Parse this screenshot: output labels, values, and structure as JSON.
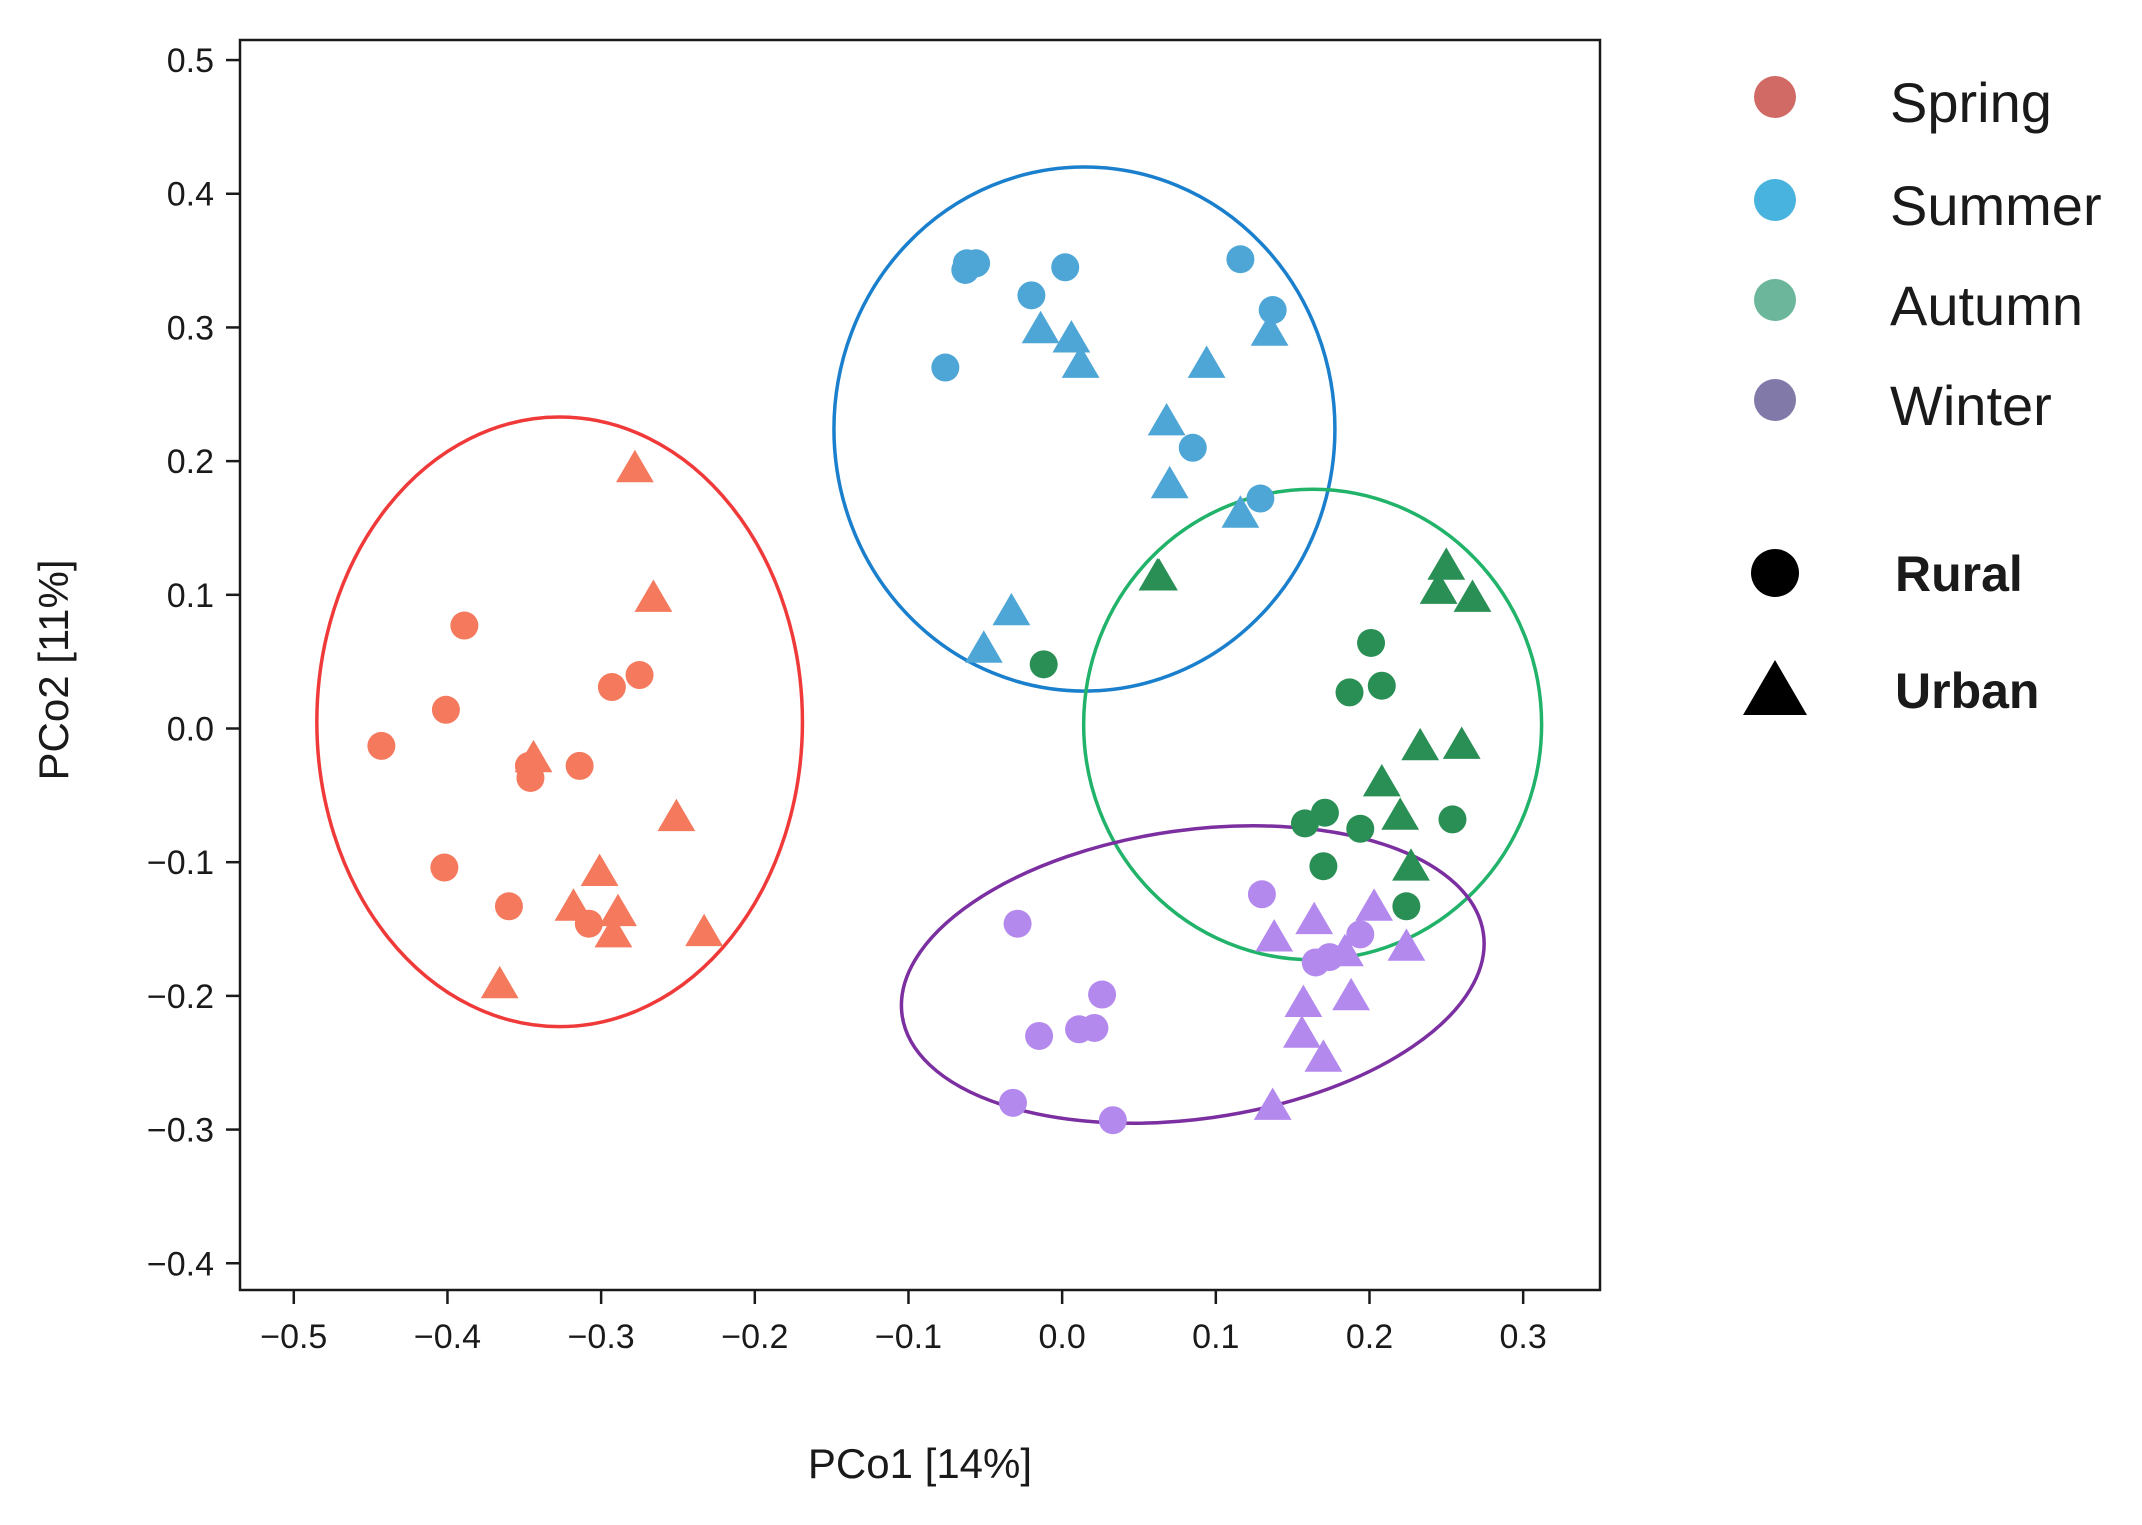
{
  "chart_data": {
    "type": "scatter",
    "title": "",
    "xlabel": "PCo1 [14%]",
    "ylabel": "PCo2 [11%]",
    "xlim": [
      -0.535,
      0.35
    ],
    "ylim": [
      -0.42,
      0.515
    ],
    "xticks": [
      -0.5,
      -0.4,
      -0.3,
      -0.2,
      -0.1,
      0.0,
      0.1,
      0.2,
      0.3
    ],
    "xtick_labels": [
      "−0.5",
      "−0.4",
      "−0.3",
      "−0.2",
      "−0.1",
      "0.0",
      "0.1",
      "0.2",
      "0.3"
    ],
    "yticks": [
      0.5,
      0.4,
      0.3,
      0.2,
      0.1,
      0.0,
      -0.1,
      -0.2,
      -0.3,
      -0.4
    ],
    "ytick_labels": [
      "0.5",
      "0.4",
      "0.3",
      "0.2",
      "0.1",
      "0.0",
      "−0.1",
      "−0.2",
      "−0.3",
      "−0.4"
    ],
    "grid": false,
    "legend": {
      "position": "right",
      "seasons": [
        {
          "label": "Spring",
          "color": "#c9504a"
        },
        {
          "label": "Summer",
          "color": "#27a6d8"
        },
        {
          "label": "Autumn",
          "color": "#52a98a"
        },
        {
          "label": "Winter",
          "color": "#6b6399"
        }
      ],
      "shapes": [
        {
          "label": "Rural",
          "marker": "circle"
        },
        {
          "label": "Urban",
          "marker": "triangle"
        }
      ]
    },
    "series": [
      {
        "name": "Spring",
        "color": "#f4795d",
        "ellipse_color": "#f03a3a",
        "ellipse": {
          "cx": -0.327,
          "cy": 0.005,
          "rx": 0.158,
          "ry": 0.228,
          "angle": 0
        },
        "rural": [
          [
            -0.443,
            -0.013
          ],
          [
            -0.401,
            0.014
          ],
          [
            -0.389,
            0.077
          ],
          [
            -0.402,
            -0.104
          ],
          [
            -0.36,
            -0.133
          ],
          [
            -0.346,
            -0.037
          ],
          [
            -0.347,
            -0.028
          ],
          [
            -0.314,
            -0.028
          ],
          [
            -0.308,
            -0.146
          ],
          [
            -0.293,
            0.031
          ],
          [
            -0.275,
            0.04
          ]
        ],
        "urban": [
          [
            -0.278,
            0.195
          ],
          [
            -0.266,
            0.098
          ],
          [
            -0.344,
            -0.022
          ],
          [
            -0.251,
            -0.066
          ],
          [
            -0.301,
            -0.107
          ],
          [
            -0.318,
            -0.133
          ],
          [
            -0.289,
            -0.137
          ],
          [
            -0.292,
            -0.153
          ],
          [
            -0.233,
            -0.152
          ],
          [
            -0.366,
            -0.191
          ]
        ]
      },
      {
        "name": "Summer",
        "color": "#4ea6d6",
        "ellipse_color": "#1a7fcc",
        "ellipse": {
          "cx": 0.0145,
          "cy": 0.224,
          "rx": 0.163,
          "ry": 0.196,
          "angle": 0
        },
        "rural": [
          [
            -0.062,
            0.348
          ],
          [
            -0.056,
            0.348
          ],
          [
            -0.063,
            0.343
          ],
          [
            0.002,
            0.345
          ],
          [
            -0.02,
            0.324
          ],
          [
            -0.076,
            0.27
          ],
          [
            0.116,
            0.351
          ],
          [
            0.137,
            0.313
          ],
          [
            0.085,
            0.21
          ],
          [
            0.129,
            0.172
          ]
        ],
        "urban": [
          [
            -0.014,
            0.299
          ],
          [
            0.006,
            0.292
          ],
          [
            0.012,
            0.273
          ],
          [
            0.094,
            0.273
          ],
          [
            0.135,
            0.297
          ],
          [
            0.068,
            0.23
          ],
          [
            0.07,
            0.183
          ],
          [
            0.116,
            0.161
          ],
          [
            -0.033,
            0.088
          ],
          [
            -0.051,
            0.06
          ]
        ]
      },
      {
        "name": "Autumn",
        "color": "#2a8f55",
        "ellipse_color": "#22b36a",
        "ellipse": {
          "cx": 0.163,
          "cy": 0.003,
          "rx": 0.149,
          "ry": 0.176,
          "angle": 0
        },
        "rural": [
          [
            -0.012,
            0.048
          ],
          [
            0.201,
            0.064
          ],
          [
            0.208,
            0.032
          ],
          [
            0.187,
            0.027
          ],
          [
            0.171,
            -0.063
          ],
          [
            0.158,
            -0.071
          ],
          [
            0.194,
            -0.075
          ],
          [
            0.254,
            -0.068
          ],
          [
            0.17,
            -0.103
          ],
          [
            0.224,
            -0.133
          ]
        ],
        "urban": [
          [
            0.063,
            0.114
          ],
          [
            0.25,
            0.122
          ],
          [
            0.245,
            0.104
          ],
          [
            0.267,
            0.098
          ],
          [
            0.233,
            -0.013
          ],
          [
            0.26,
            -0.012
          ],
          [
            0.208,
            -0.04
          ],
          [
            0.22,
            -0.065
          ],
          [
            0.227,
            -0.103
          ],
          [
            0.062,
            0.114
          ]
        ]
      },
      {
        "name": "Winter",
        "color": "#b489ee",
        "ellipse_color": "#7b2fa0",
        "ellipse": {
          "cx": 0.085,
          "cy": -0.184,
          "rx": 0.191,
          "ry": 0.108,
          "angle": -8
        },
        "rural": [
          [
            -0.029,
            -0.146
          ],
          [
            -0.015,
            -0.23
          ],
          [
            0.011,
            -0.225
          ],
          [
            0.021,
            -0.224
          ],
          [
            0.026,
            -0.199
          ],
          [
            -0.032,
            -0.28
          ],
          [
            0.033,
            -0.293
          ],
          [
            0.13,
            -0.124
          ],
          [
            0.165,
            -0.175
          ],
          [
            0.194,
            -0.154
          ],
          [
            0.174,
            -0.171
          ]
        ],
        "urban": [
          [
            0.164,
            -0.143
          ],
          [
            0.203,
            -0.133
          ],
          [
            0.138,
            -0.156
          ],
          [
            0.184,
            -0.167
          ],
          [
            0.224,
            -0.163
          ],
          [
            0.157,
            -0.205
          ],
          [
            0.188,
            -0.2
          ],
          [
            0.156,
            -0.228
          ],
          [
            0.17,
            -0.246
          ],
          [
            0.137,
            -0.282
          ]
        ]
      }
    ]
  }
}
